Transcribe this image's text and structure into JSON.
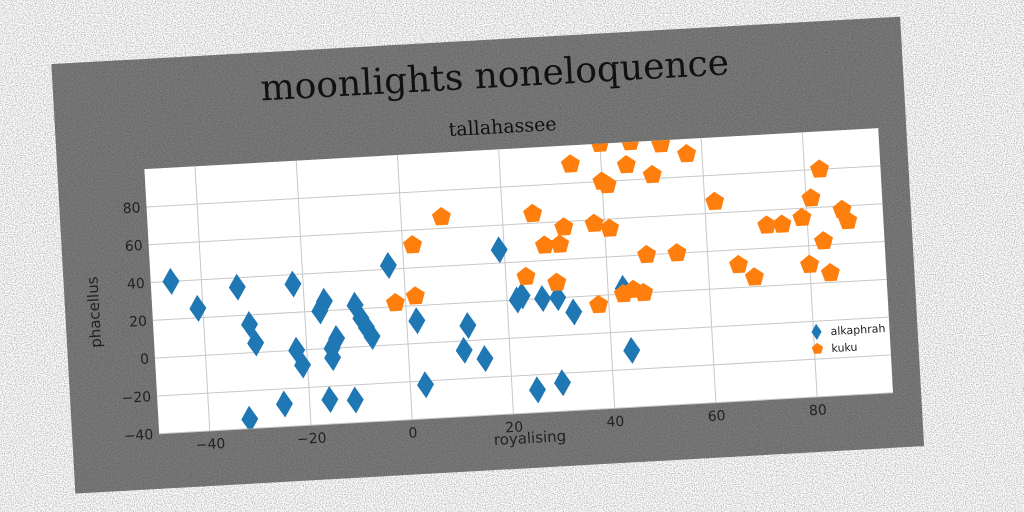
{
  "chart_data": {
    "type": "scatter",
    "title": "moonlights noneloquence",
    "subtitle": "tallahassee",
    "xlabel": "royalising",
    "ylabel": "phacellus",
    "xlim": [
      -50,
      95
    ],
    "ylim": [
      -40,
      100
    ],
    "xticks": [
      -40,
      -20,
      0,
      20,
      40,
      60,
      80
    ],
    "yticks": [
      -40,
      -20,
      0,
      20,
      40,
      60,
      80
    ],
    "grid": true,
    "legend_position": "lower-right",
    "series": [
      {
        "name": "alkaphrah",
        "marker": "diamond",
        "color": "#1f77b4",
        "points": [
          [
            -46,
            40
          ],
          [
            -41,
            25
          ],
          [
            -33,
            35
          ],
          [
            -31,
            15
          ],
          [
            -30,
            5
          ],
          [
            -32,
            -35
          ],
          [
            -25,
            -28
          ],
          [
            -22,
            35
          ],
          [
            -22,
            0
          ],
          [
            -21,
            -8
          ],
          [
            -17,
            20
          ],
          [
            -16,
            25
          ],
          [
            -15,
            0
          ],
          [
            -15,
            -5
          ],
          [
            -14,
            5
          ],
          [
            -16,
            -27
          ],
          [
            -11,
            -28
          ],
          [
            -10,
            22
          ],
          [
            -9,
            15
          ],
          [
            -8,
            10
          ],
          [
            -7,
            5
          ],
          [
            -3,
            42
          ],
          [
            2,
            12
          ],
          [
            3,
            -22
          ],
          [
            12,
            8
          ],
          [
            11,
            -5
          ],
          [
            15,
            -10
          ],
          [
            19,
            47
          ],
          [
            22,
            20
          ],
          [
            23,
            22
          ],
          [
            25,
            -28
          ],
          [
            27,
            20
          ],
          [
            30,
            20
          ],
          [
            30,
            -25
          ],
          [
            33,
            12
          ],
          [
            43,
            23
          ],
          [
            44,
            -10
          ]
        ]
      },
      {
        "name": "kuku",
        "marker": "pentagon",
        "color": "#ff7f0e",
        "points": [
          [
            -2,
            22
          ],
          [
            2,
            25
          ],
          [
            2,
            52
          ],
          [
            8,
            66
          ],
          [
            24,
            32
          ],
          [
            26,
            65
          ],
          [
            28,
            48
          ],
          [
            30,
            28
          ],
          [
            31,
            48
          ],
          [
            32,
            57
          ],
          [
            34,
            90
          ],
          [
            38,
            15
          ],
          [
            38,
            58
          ],
          [
            40,
            100
          ],
          [
            40,
            80
          ],
          [
            40,
            102
          ],
          [
            41,
            55
          ],
          [
            41,
            78
          ],
          [
            43,
            20
          ],
          [
            45,
            22
          ],
          [
            45,
            88
          ],
          [
            46,
            100
          ],
          [
            47,
            20
          ],
          [
            48,
            40
          ],
          [
            50,
            82
          ],
          [
            52,
            98
          ],
          [
            54,
            40
          ],
          [
            57,
            92
          ],
          [
            62,
            66
          ],
          [
            66,
            32
          ],
          [
            69,
            25
          ],
          [
            72,
            52
          ],
          [
            75,
            52
          ],
          [
            79,
            55
          ],
          [
            80,
            30
          ],
          [
            81,
            65
          ],
          [
            83,
            42
          ],
          [
            83,
            80
          ],
          [
            84,
            25
          ],
          [
            87,
            58
          ],
          [
            88,
            52
          ]
        ]
      }
    ]
  }
}
